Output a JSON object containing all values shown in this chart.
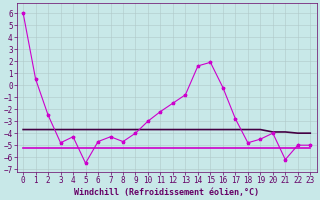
{
  "background_color": "#c8e8e8",
  "grid_color": "#b0c8c8",
  "line1_color": "#cc00cc",
  "line2_color": "#440044",
  "line3_color": "#cc00cc",
  "marker": "*",
  "x": [
    0,
    1,
    2,
    3,
    4,
    5,
    6,
    7,
    8,
    9,
    10,
    11,
    12,
    13,
    14,
    15,
    16,
    17,
    18,
    19,
    20,
    21,
    22,
    23
  ],
  "y_zigzag": [
    6,
    0.5,
    -2.5,
    -4.8,
    -4.3,
    -6.5,
    -4.7,
    -4.3,
    -4.7,
    -4.0,
    -3.0,
    -2.2,
    -1.5,
    -0.8,
    1.6,
    1.9,
    -0.2,
    -2.8,
    -4.8,
    -4.5,
    -4.0,
    -6.2,
    -5.0,
    -5.0
  ],
  "y_flat_top": [
    -3.7,
    -3.7,
    -3.7,
    -3.7,
    -3.7,
    -3.7,
    -3.7,
    -3.7,
    -3.7,
    -3.7,
    -3.7,
    -3.7,
    -3.7,
    -3.7,
    -3.7,
    -3.7,
    -3.7,
    -3.7,
    -3.7,
    -3.7,
    -3.9,
    -3.9,
    -4.0,
    -4.0
  ],
  "y_flat_bottom": [
    -5.2,
    -5.2,
    -5.2,
    -5.2,
    -5.2,
    -5.2,
    -5.2,
    -5.2,
    -5.2,
    -5.2,
    -5.2,
    -5.2,
    -5.2,
    -5.2,
    -5.2,
    -5.2,
    -5.2,
    -5.2,
    -5.2,
    -5.2,
    -5.2,
    -5.2,
    -5.2,
    -5.2
  ],
  "xlabel": "Windchill (Refroidissement éolien,°C)",
  "xlim": [
    -0.5,
    23.5
  ],
  "ylim": [
    -7.2,
    6.8
  ],
  "yticks": [
    6,
    5,
    4,
    3,
    2,
    1,
    0,
    -1,
    -2,
    -3,
    -4,
    -5,
    -6,
    -7
  ],
  "xticks": [
    0,
    1,
    2,
    3,
    4,
    5,
    6,
    7,
    8,
    9,
    10,
    11,
    12,
    13,
    14,
    15,
    16,
    17,
    18,
    19,
    20,
    21,
    22,
    23
  ],
  "font_color": "#660066",
  "font_size": 5.5,
  "xlabel_fontsize": 6,
  "linewidth_zigzag": 0.8,
  "linewidth_flat": 1.2,
  "markersize": 2.5
}
